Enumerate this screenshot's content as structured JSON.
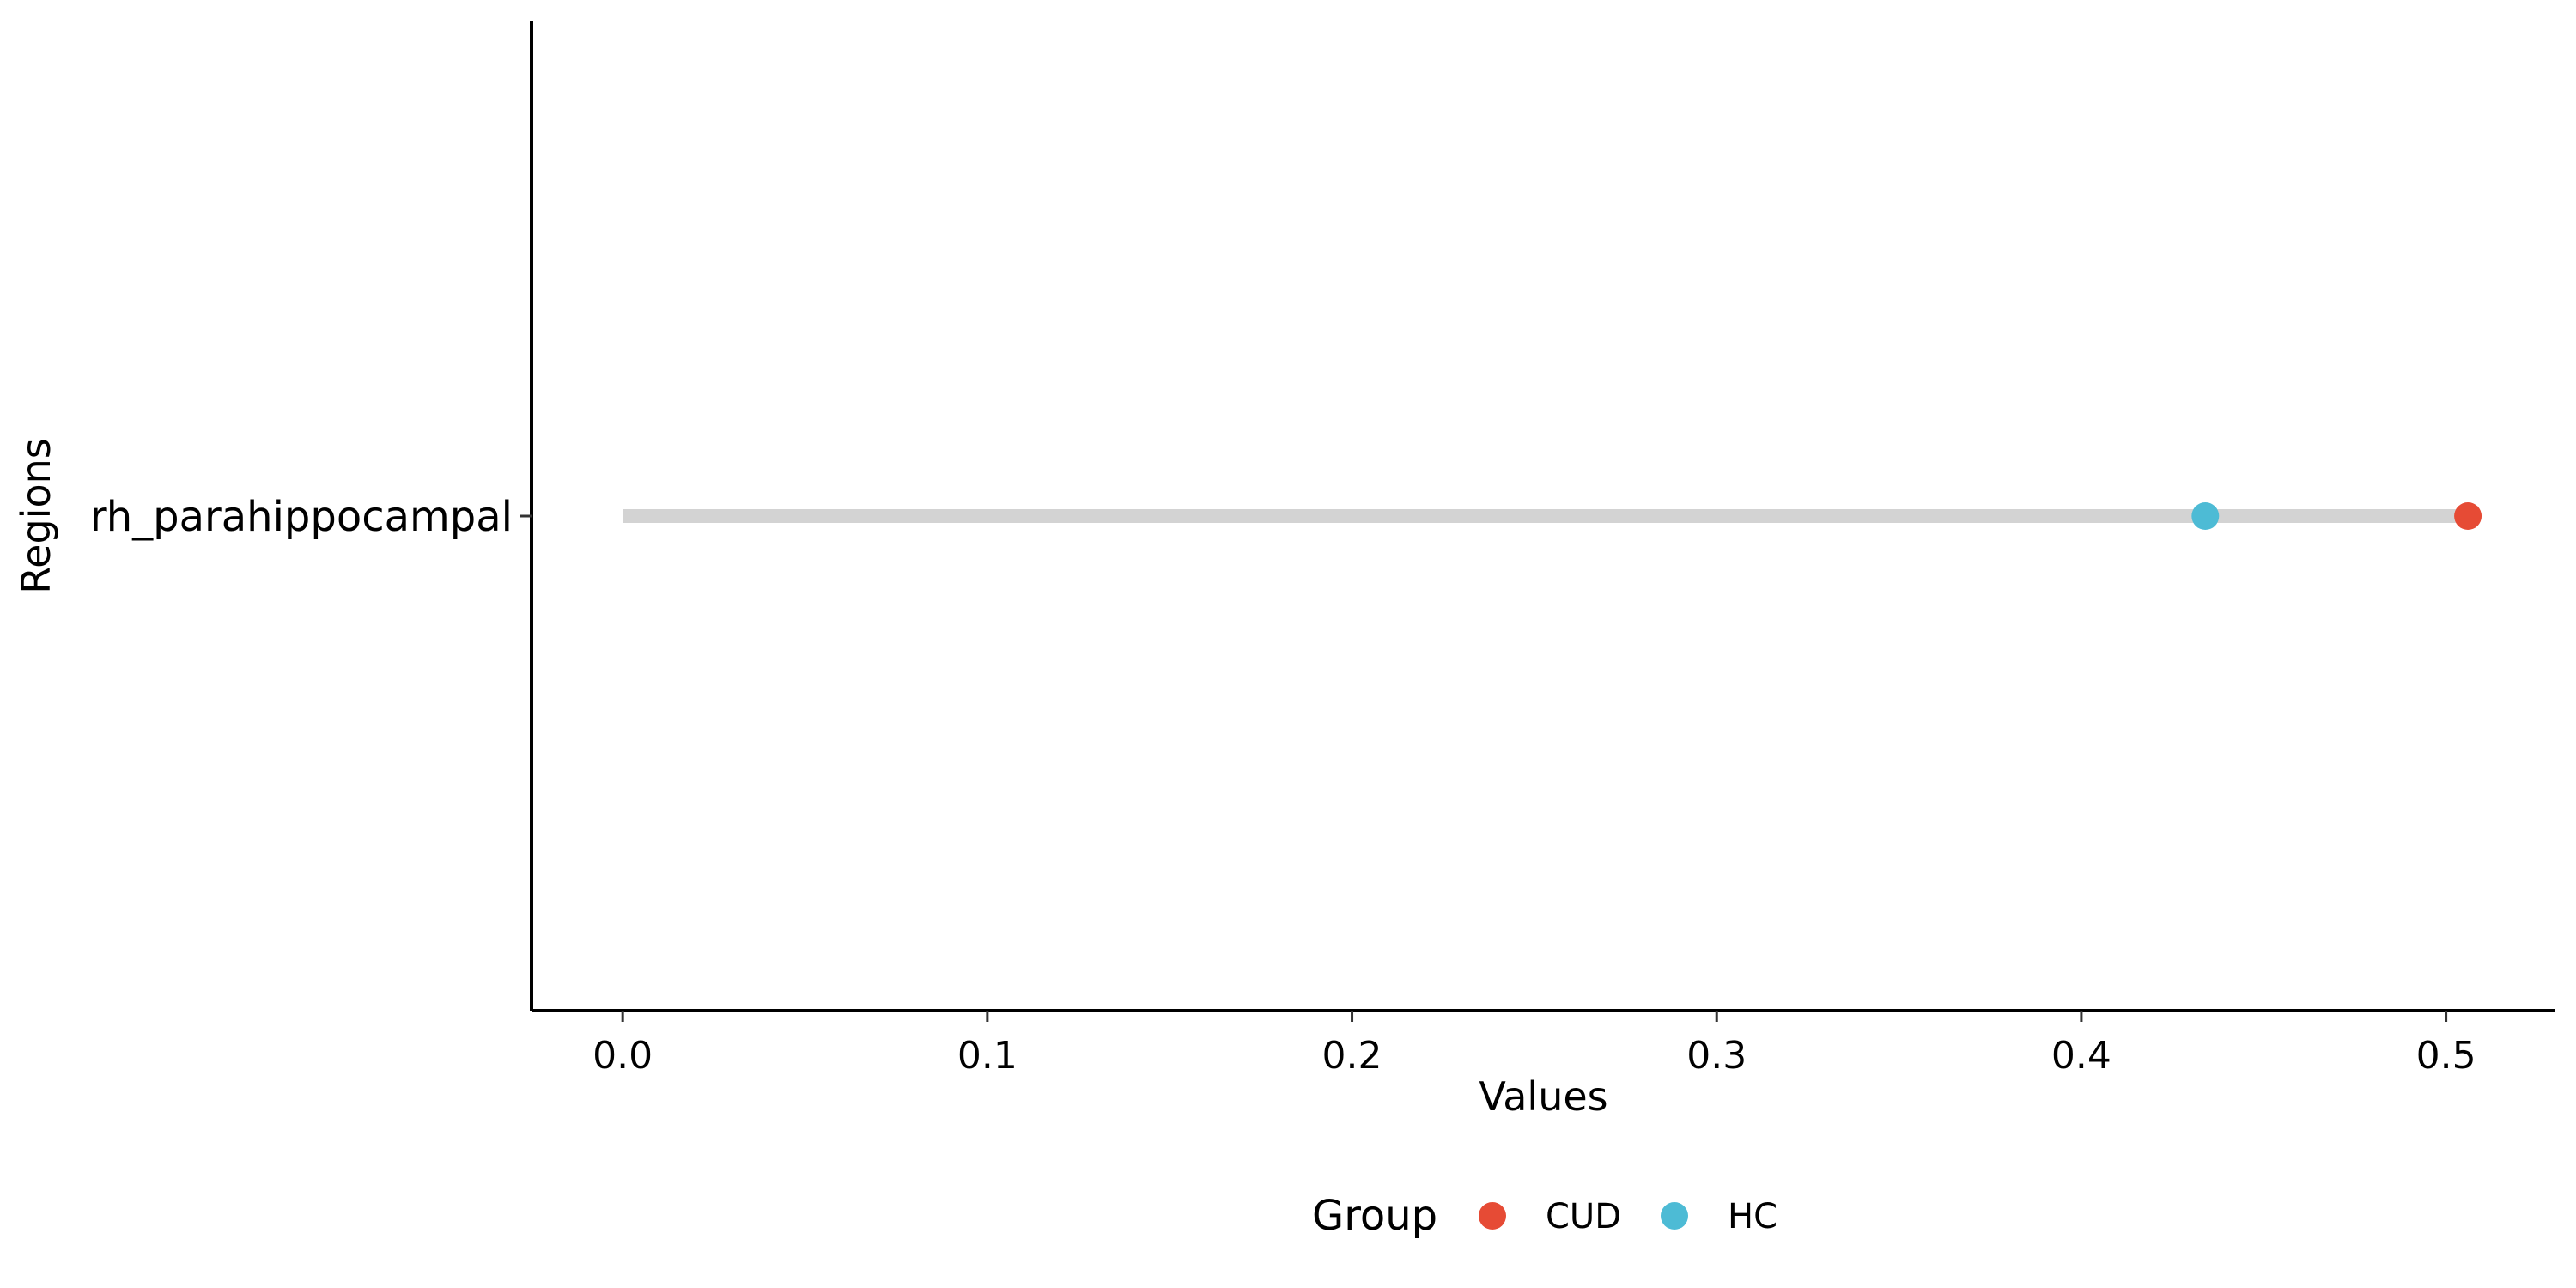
{
  "chart_data": {
    "type": "scatter",
    "subtype": "dumbbell",
    "title": "",
    "xlabel": "Values",
    "ylabel": "Regions",
    "xlim": [
      -0.025,
      0.53
    ],
    "xticks": [
      0.0,
      0.1,
      0.2,
      0.3,
      0.4,
      0.5
    ],
    "xtick_labels": [
      "0.0",
      "0.1",
      "0.2",
      "0.3",
      "0.4",
      "0.5"
    ],
    "categories": [
      "rh_parahippocampal"
    ],
    "segments": [
      {
        "category": "rh_parahippocampal",
        "x_start": 0.0,
        "x_end": 0.506
      }
    ],
    "series": [
      {
        "name": "CUD",
        "color": "#E64B35",
        "values": [
          0.506
        ]
      },
      {
        "name": "HC",
        "color": "#4DBBD5",
        "values": [
          0.434
        ]
      }
    ],
    "segment_color": "#D3D3D3",
    "grid": false,
    "legend": {
      "title": "Group",
      "position": "bottom"
    }
  }
}
